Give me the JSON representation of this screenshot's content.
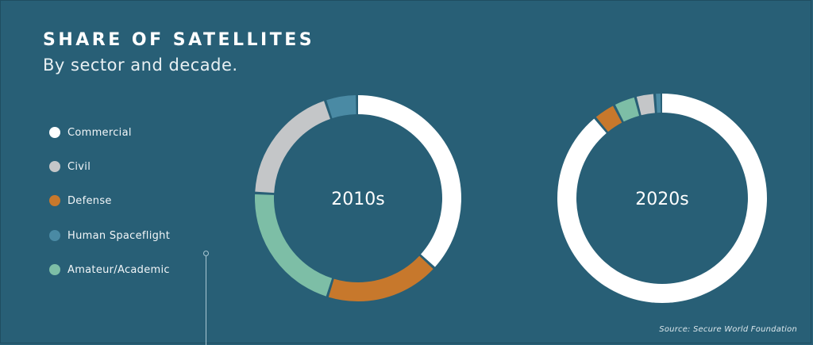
{
  "header": {
    "title": "SHARE OF SATELLITES",
    "subtitle": "By sector and decade."
  },
  "legend": [
    {
      "label": "Commercial",
      "color": "#ffffff"
    },
    {
      "label": "Civil",
      "color": "#c4c6c8"
    },
    {
      "label": "Defense",
      "color": "#c7782c"
    },
    {
      "label": "Human Spaceflight",
      "color": "#4a8aa4"
    },
    {
      "label": "Amateur/Academic",
      "color": "#7dbea6"
    }
  ],
  "source": "Source: Secure World Foundation",
  "chart_data": [
    {
      "type": "pie",
      "title": "2010s",
      "categories": [
        "Commercial",
        "Defense",
        "Amateur/Academic",
        "Civil",
        "Human Spaceflight"
      ],
      "values": [
        37,
        18,
        21,
        19,
        5
      ]
    },
    {
      "type": "pie",
      "title": "2020s",
      "categories": [
        "Commercial",
        "Defense",
        "Amateur/Academic",
        "Civil",
        "Human Spaceflight"
      ],
      "values": [
        90,
        3.5,
        3.5,
        3,
        1
      ]
    }
  ]
}
